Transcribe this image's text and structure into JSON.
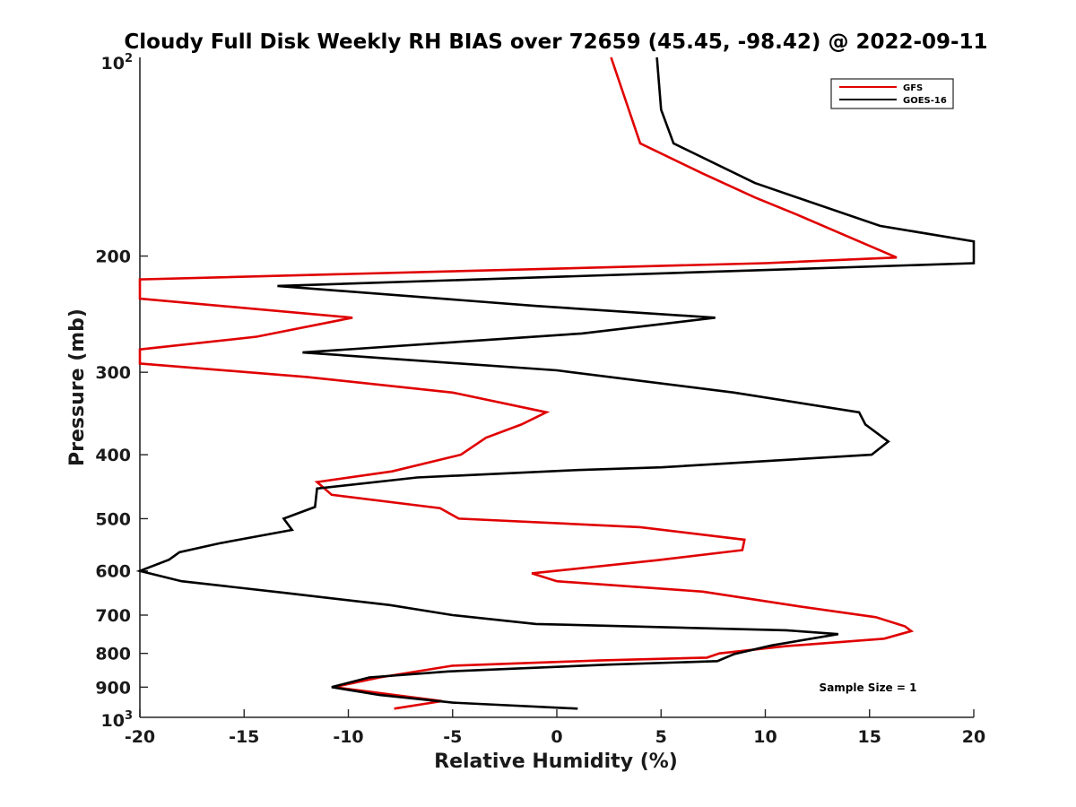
{
  "chart_data": {
    "type": "line",
    "title": "Cloudy Full Disk Weekly RH BIAS over 72659 (45.45, -98.42) @ 2022-09-11",
    "xlabel": "Relative Humidity (%)",
    "ylabel": "Pressure (mb)",
    "xlim": [
      -20,
      20
    ],
    "ylim": [
      100,
      1000
    ],
    "y_scale": "log",
    "y_reversed": true,
    "x_ticks": [
      -20,
      -15,
      -10,
      -5,
      0,
      5,
      10,
      15,
      20
    ],
    "x_tick_labels": [
      "-20",
      "-15",
      "-10",
      "-5",
      "0",
      "5",
      "10",
      "15",
      "20"
    ],
    "y_ticks": [
      200,
      300,
      400,
      500,
      600,
      700,
      800,
      900
    ],
    "y_tick_labels": [
      "200",
      "300",
      "400",
      "500",
      "600",
      "700",
      "800",
      "900"
    ],
    "y_end_labels": {
      "top_base": "10",
      "top_exp": "2",
      "bottom_base": "10",
      "bottom_exp": "3"
    },
    "grid": false,
    "legend_position": "top-right",
    "annotation": "Sample Size = 1",
    "series": [
      {
        "name": "GFS",
        "color": "#e00000",
        "points": [
          [
            2.6,
            100
          ],
          [
            4.0,
            135
          ],
          [
            7.0,
            150
          ],
          [
            9.5,
            163
          ],
          [
            11.5,
            173
          ],
          [
            16.3,
            201
          ],
          [
            10.0,
            205
          ],
          [
            -20.0,
            217
          ],
          [
            -20.0,
            232
          ],
          [
            -9.8,
            248
          ],
          [
            -14.4,
            265
          ],
          [
            -20.0,
            277
          ],
          [
            -20.0,
            291
          ],
          [
            -12.0,
            305
          ],
          [
            -5.0,
            322
          ],
          [
            -0.5,
            345
          ],
          [
            -1.7,
            360
          ],
          [
            -3.4,
            377
          ],
          [
            -4.6,
            400
          ],
          [
            -7.9,
            424
          ],
          [
            -11.5,
            440
          ],
          [
            -10.8,
            460
          ],
          [
            -5.6,
            482
          ],
          [
            -4.7,
            500
          ],
          [
            4.0,
            515
          ],
          [
            9.0,
            538
          ],
          [
            8.9,
            558
          ],
          [
            4.8,
            578
          ],
          [
            -1.2,
            605
          ],
          [
            0.0,
            622
          ],
          [
            7.0,
            645
          ],
          [
            11.5,
            678
          ],
          [
            15.3,
            705
          ],
          [
            16.7,
            728
          ],
          [
            17.0,
            740
          ],
          [
            15.7,
            760
          ],
          [
            11.0,
            780
          ],
          [
            7.8,
            800
          ],
          [
            7.2,
            812
          ],
          [
            2.0,
            820
          ],
          [
            -5.0,
            835
          ],
          [
            -8.5,
            870
          ],
          [
            -10.7,
            900
          ],
          [
            -5.5,
            945
          ],
          [
            -7.8,
            970
          ]
        ]
      },
      {
        "name": "GOES-16",
        "color": "#000000",
        "points": [
          [
            4.8,
            100
          ],
          [
            5.0,
            120
          ],
          [
            5.6,
            135
          ],
          [
            9.5,
            155
          ],
          [
            15.5,
            180
          ],
          [
            20.0,
            190
          ],
          [
            20.0,
            205
          ],
          [
            -13.4,
            222
          ],
          [
            -1.0,
            238
          ],
          [
            7.6,
            248
          ],
          [
            1.2,
            262
          ],
          [
            -12.2,
            280
          ],
          [
            0.0,
            298
          ],
          [
            8.5,
            322
          ],
          [
            14.5,
            345
          ],
          [
            14.8,
            360
          ],
          [
            15.9,
            382
          ],
          [
            15.1,
            400
          ],
          [
            5.0,
            418
          ],
          [
            1.0,
            422
          ],
          [
            -6.7,
            433
          ],
          [
            -11.5,
            450
          ],
          [
            -11.6,
            480
          ],
          [
            -13.1,
            500
          ],
          [
            -12.7,
            520
          ],
          [
            -16.2,
            545
          ],
          [
            -18.1,
            562
          ],
          [
            -18.6,
            577
          ],
          [
            -20.0,
            600
          ],
          [
            -18.0,
            622
          ],
          [
            -13.0,
            648
          ],
          [
            -8.0,
            676
          ],
          [
            -5.0,
            700
          ],
          [
            -1.0,
            722
          ],
          [
            11.0,
            738
          ],
          [
            13.5,
            748
          ],
          [
            10.3,
            778
          ],
          [
            8.5,
            802
          ],
          [
            7.7,
            822
          ],
          [
            2.5,
            832
          ],
          [
            -5.2,
            852
          ],
          [
            -9.0,
            870
          ],
          [
            -10.8,
            900
          ],
          [
            -8.5,
            925
          ],
          [
            -5.0,
            950
          ],
          [
            1.0,
            970
          ]
        ]
      }
    ]
  }
}
